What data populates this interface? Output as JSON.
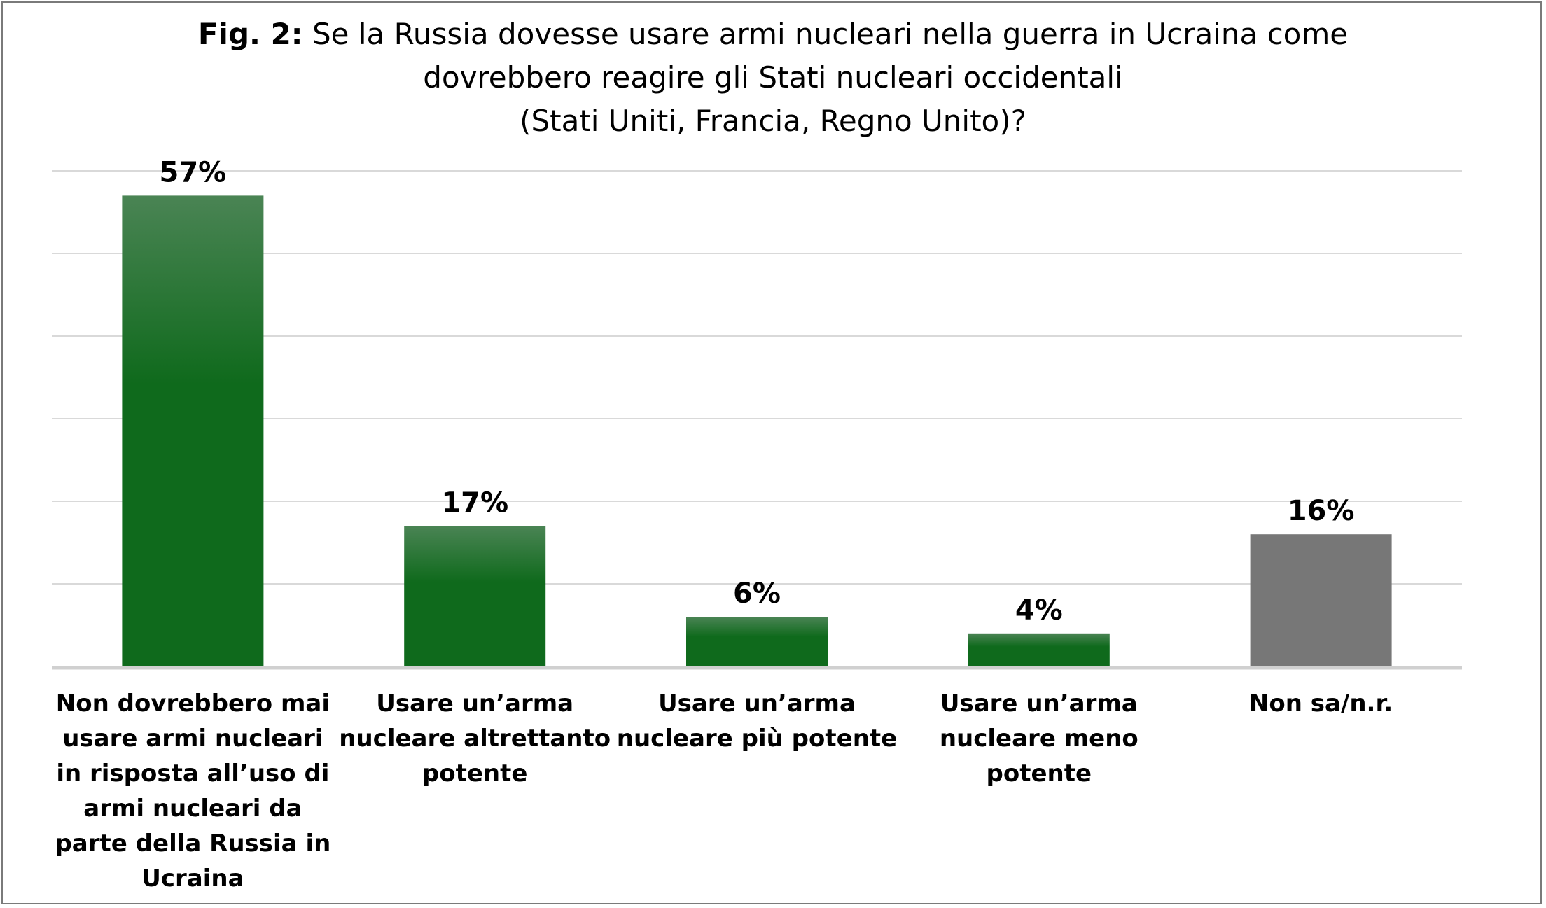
{
  "chart_data": {
    "type": "bar",
    "title_prefix": "Fig. 2:",
    "title_lines": [
      "Se la Russia dovesse usare armi nucleari nella guerra in Ucraina come",
      "dovrebbero reagire gli Stati nucleari occidentali",
      "(Stati Uniti, Francia, Regno Unito)?"
    ],
    "categories": [
      [
        "Non dovrebbero mai",
        "usare armi nucleari",
        "in risposta all’uso di",
        "armi nucleari da",
        "parte della Russia in",
        "Ucraina"
      ],
      [
        "Usare un’arma",
        "nucleare altrettanto",
        "potente"
      ],
      [
        "Usare un’arma",
        "nucleare più potente"
      ],
      [
        "Usare un’arma",
        "nucleare meno",
        "potente"
      ],
      [
        "Non sa/n.r."
      ]
    ],
    "values": [
      57,
      17,
      6,
      4,
      16
    ],
    "value_labels": [
      "57%",
      "17%",
      "6%",
      "4%",
      "16%"
    ],
    "ylim": [
      0,
      60
    ],
    "grid": true,
    "colors": {
      "bar_top": "#4a8454",
      "bar_bottom": "#0f6a1c",
      "bar_gray": "#777777",
      "grid": "#d9d9d9",
      "axis": "#d0d0d0"
    },
    "bar_color_keys": [
      "green",
      "green",
      "green",
      "green",
      "gray"
    ]
  }
}
